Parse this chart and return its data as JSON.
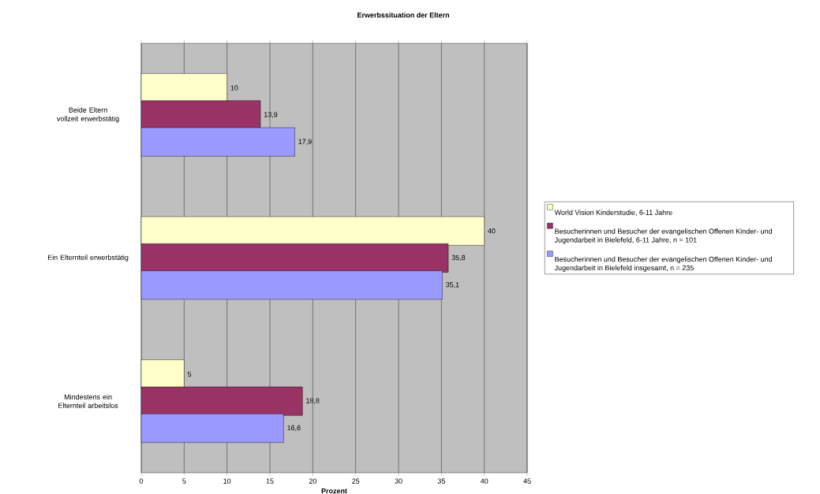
{
  "chart_data": {
    "type": "bar",
    "orientation": "horizontal",
    "title": "Erwerbssituation der Eltern",
    "xlabel": "Prozent",
    "categories": [
      "Beide Eltern vollzeit erwerbstätig",
      "Ein Elternteil erwerbstätig",
      "Mindestens ein Elternteil arbeitslos"
    ],
    "series": [
      {
        "name": "World Vision Kinderstudie, 6-11 Jahre",
        "color": "#ffffcc",
        "values": [
          10,
          40,
          5
        ],
        "value_labels": [
          "10",
          "40",
          "5"
        ]
      },
      {
        "name": "Besucherinnen und Besucher der evangelischen Offenen Kinder- und Jugendarbeit in Bielefeld, 6-11 Jahre, n = 101",
        "color": "#993366",
        "values": [
          13.9,
          35.8,
          18.8
        ],
        "value_labels": [
          "13,9",
          "35,8",
          "18,8"
        ]
      },
      {
        "name": "Besucherinnen und Besucher der evangelischen Offenen Kinder- und Jugendarbeit in Bielefeld insgesamt, n = 235",
        "color": "#9999ff",
        "values": [
          17.9,
          35.1,
          16.6
        ],
        "value_labels": [
          "17,9",
          "35,1",
          "16,6"
        ]
      }
    ],
    "xlim": [
      0,
      45
    ],
    "xticks": [
      0,
      5,
      10,
      15,
      20,
      25,
      30,
      35,
      40,
      45
    ],
    "grid": "x",
    "legend": "right"
  }
}
